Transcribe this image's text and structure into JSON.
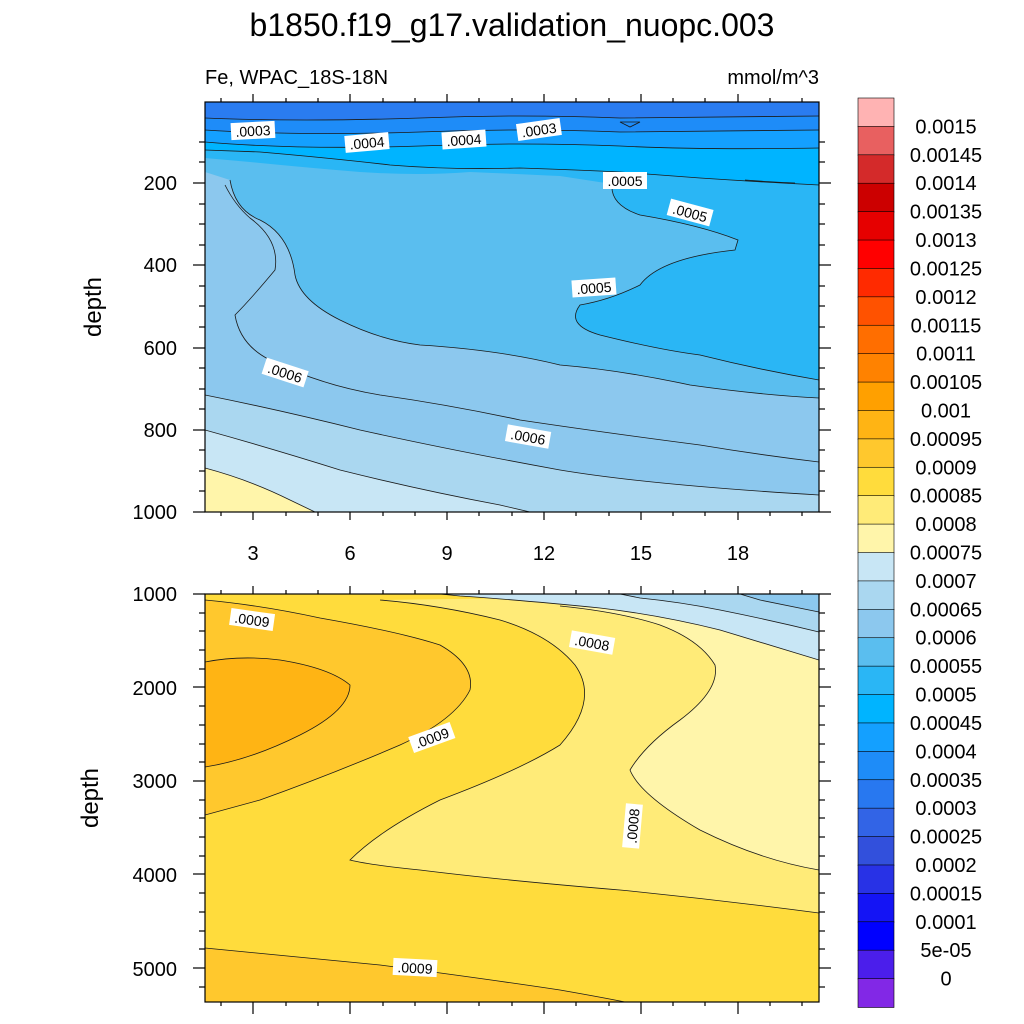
{
  "chart_data": [
    {
      "type": "contour",
      "panel": "upper",
      "title": "b1850.f19_g17.validation_nuopc.003",
      "left_string": "Fe, WPAC_18S-18N",
      "right_string": "mmol/m^3",
      "xlabel": "",
      "ylabel": "depth",
      "xlim": [
        1.5,
        20.5
      ],
      "ylim": [
        1000,
        15
      ],
      "x_ticks": [
        "3",
        "6",
        "9",
        "12",
        "15",
        "18"
      ],
      "y_ticks": [
        "200",
        "400",
        "600",
        "800",
        "1000"
      ],
      "contour_labels": [
        ".0003",
        ".0004",
        ".0004",
        ".0003",
        ".0005",
        ".0005",
        ".0005",
        ".0006",
        ".0006"
      ],
      "regions": [
        {
          "level": "<=0.00045",
          "value_range": [
            0.00025,
            0.00045
          ],
          "depth_range": [
            15,
            100
          ]
        },
        {
          "level": "0.00045-0.0005",
          "depth_range": [
            150,
            700
          ]
        },
        {
          "level": "0.0005-0.00055",
          "depth_range": [
            100,
            900
          ]
        },
        {
          "level": "0.00055-0.0006",
          "depth_range": [
            180,
            1000
          ]
        },
        {
          "level": "0.0006-0.00065",
          "depth_range": [
            600,
            1000
          ]
        },
        {
          "level": "0.00065-0.0007",
          "depth_range": [
            800,
            1000
          ]
        },
        {
          "level": "0.0007-0.00075",
          "depth_range": [
            900,
            1000
          ]
        },
        {
          "level": "0.00075-0.0008",
          "depth_range": [
            960,
            1000
          ]
        }
      ]
    },
    {
      "type": "contour",
      "panel": "lower",
      "xlabel": "",
      "ylabel": "depth",
      "xlim": [
        1.5,
        20.5
      ],
      "ylim": [
        5350,
        1000
      ],
      "y_ticks": [
        "1000",
        "2000",
        "3000",
        "4000",
        "5000"
      ],
      "contour_labels": [
        ".0009",
        ".0008",
        ".0009",
        ".0008",
        ".0009"
      ],
      "regions": [
        {
          "level": "0.00095-0.001",
          "depth_range": [
            1700,
            2900
          ]
        },
        {
          "level": "0.0009-0.00095",
          "depth_range": [
            1100,
            3400
          ]
        },
        {
          "level": "0.00085-0.0009",
          "depth_range": [
            1100,
            5350
          ]
        },
        {
          "level": "0.0008-0.00085",
          "depth_range": [
            1100,
            4800
          ]
        },
        {
          "level": "0.00075-0.0008",
          "depth_range": [
            1300,
            4400
          ]
        },
        {
          "level": "0.0007-0.00075",
          "depth_range": [
            1000,
            1900
          ]
        },
        {
          "level": "0.00065-0.0007",
          "depth_range": [
            1000,
            1500
          ]
        },
        {
          "level": "0.0006-0.00065",
          "depth_range": [
            1000,
            1200
          ]
        }
      ]
    },
    {
      "type": "colorbar",
      "levels": [
        "0.0015",
        "0.00145",
        "0.0014",
        "0.00135",
        "0.0013",
        "0.00125",
        "0.0012",
        "0.00115",
        "0.0011",
        "0.00105",
        "0.001",
        "0.00095",
        "0.0009",
        "0.00085",
        "0.0008",
        "0.00075",
        "0.0007",
        "0.00065",
        "0.0006",
        "0.00055",
        "0.0005",
        "0.00045",
        "0.0004",
        "0.00035",
        "0.0003",
        "0.00025",
        "0.0002",
        "0.00015",
        "0.0001",
        "5e-05",
        "0"
      ],
      "colors": [
        "#ffb3b3",
        "#e86060",
        "#d42a2a",
        "#cc0000",
        "#e60000",
        "#ff0000",
        "#ff2a00",
        "#ff5200",
        "#ff6e00",
        "#ff8200",
        "#ffa000",
        "#ffb414",
        "#ffc82d",
        "#ffdc3c",
        "#ffeb78",
        "#fff5aa",
        "#c8e6f5",
        "#aad7f0",
        "#8cc8ee",
        "#5abeef",
        "#2ab6f5",
        "#00b4ff",
        "#14a0ff",
        "#1e8cf8",
        "#2878f0",
        "#3264e6",
        "#3250dc",
        "#2832e6",
        "#1414f5",
        "#0000ff",
        "#4b1eeb",
        "#8228e6"
      ]
    }
  ]
}
